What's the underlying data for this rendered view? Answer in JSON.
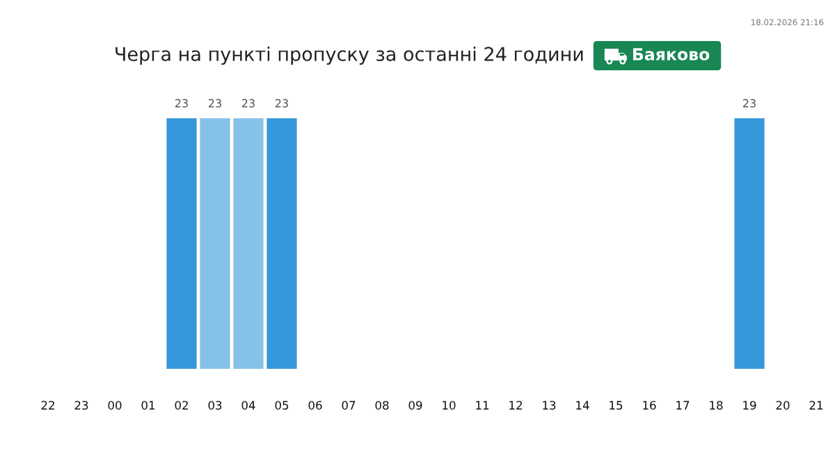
{
  "chart_data": {
    "type": "bar",
    "title": "Черга на пункті пропуску за останні 24 години",
    "subtitle": "Баяково",
    "annotations": [
      "18.02.2026 21:16"
    ],
    "categories": [
      "22",
      "23",
      "00",
      "01",
      "02",
      "03",
      "04",
      "05",
      "06",
      "07",
      "08",
      "09",
      "10",
      "11",
      "12",
      "13",
      "14",
      "15",
      "16",
      "17",
      "18",
      "19",
      "20",
      "21"
    ],
    "values": [
      null,
      null,
      null,
      null,
      23,
      23,
      23,
      23,
      null,
      null,
      null,
      null,
      null,
      null,
      null,
      null,
      null,
      null,
      null,
      null,
      null,
      23,
      null,
      null
    ],
    "colors": [
      "#3598db",
      "#3598db",
      "#3598db",
      "#3598db",
      "#3598db",
      "#85c1e9",
      "#85c1e9",
      "#3598db",
      "#3598db",
      "#3598db",
      "#3598db",
      "#3598db",
      "#3598db",
      "#3598db",
      "#3598db",
      "#3598db",
      "#3598db",
      "#3598db",
      "#3598db",
      "#3598db",
      "#3598db",
      "#3598db",
      "#3598db",
      "#3598db"
    ],
    "data_labels": true,
    "tick_labels": "x"
  }
}
